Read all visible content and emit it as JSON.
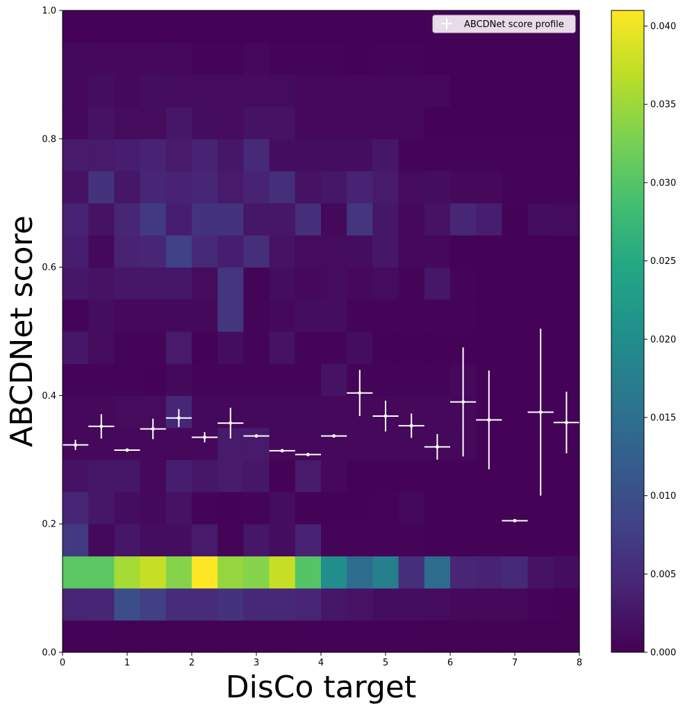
{
  "chart_data": {
    "type": "heatmap",
    "xlabel": "DisCo target",
    "ylabel": "ABCDNet score",
    "xlim": [
      0,
      8
    ],
    "ylim": [
      0,
      1
    ],
    "x_ticks": [
      "0",
      "1",
      "2",
      "3",
      "4",
      "5",
      "6",
      "7",
      "8"
    ],
    "y_ticks": [
      "0.0",
      "0.2",
      "0.4",
      "0.6",
      "0.8",
      "1.0"
    ],
    "colorbar": {
      "colormap": "viridis",
      "range": [
        0,
        0.041
      ],
      "ticks": [
        "0.000",
        "0.005",
        "0.010",
        "0.015",
        "0.020",
        "0.025",
        "0.030",
        "0.035",
        "0.040"
      ]
    },
    "x_bin_edges": [
      0,
      0.4,
      0.8,
      1.2,
      1.6,
      2.0,
      2.4,
      2.8,
      3.2,
      3.6,
      4.0,
      4.4,
      4.8,
      5.2,
      5.6,
      6.0,
      6.4,
      6.8,
      7.2,
      7.6,
      8.0
    ],
    "y_bin_edges": [
      0,
      0.05,
      0.1,
      0.15,
      0.2,
      0.25,
      0.3,
      0.35,
      0.4,
      0.45,
      0.5,
      0.55,
      0.6,
      0.65,
      0.7,
      0.75,
      0.8,
      0.85,
      0.9,
      0.95,
      1.0
    ],
    "heatmap_values": [
      [
        0.0002,
        0.0002,
        0.0001,
        0.0001,
        0.0001,
        0.0001,
        0.0001,
        0.0001,
        0.0001,
        0.0002,
        0.0002,
        0.0002,
        0.0002,
        0.0002,
        0.0001,
        0.0001,
        0.0001,
        0.0001,
        0.0001,
        0.0001
      ],
      [
        0.0042,
        0.0045,
        0.0098,
        0.0078,
        0.0052,
        0.0052,
        0.006,
        0.0048,
        0.0048,
        0.0042,
        0.0025,
        0.0022,
        0.0015,
        0.0015,
        0.0012,
        0.0008,
        0.0008,
        0.0008,
        0.0005,
        0.0003
      ],
      [
        0.0305,
        0.0305,
        0.0355,
        0.0375,
        0.0335,
        0.041,
        0.0345,
        0.0335,
        0.0375,
        0.03,
        0.02,
        0.0145,
        0.0175,
        0.0055,
        0.0145,
        0.0045,
        0.004,
        0.005,
        0.002,
        0.0015
      ],
      [
        0.007,
        0.001,
        0.0025,
        0.0015,
        0.0015,
        0.003,
        0.0005,
        0.0025,
        0.0015,
        0.004,
        0.0005,
        0.0005,
        0.0005,
        0.0005,
        0.0003,
        0.0003,
        0.0003,
        0.0003,
        0.0003,
        0.0003
      ],
      [
        0.0045,
        0.0025,
        0.0015,
        0.001,
        0.002,
        0.0005,
        0.0003,
        0.0005,
        0.0015,
        0.0002,
        0.0003,
        0.0003,
        0.0005,
        0.001,
        0.0003,
        0.0003,
        0.0003,
        0.0003,
        0.0003,
        0.0003
      ],
      [
        0.002,
        0.0025,
        0.0025,
        0.0008,
        0.0035,
        0.0025,
        0.003,
        0.0025,
        0.0002,
        0.003,
        0.0008,
        0.0003,
        0.0003,
        0.0003,
        0.0003,
        0.0003,
        0.0003,
        0.0003,
        0.0003,
        0.0003
      ],
      [
        0.0008,
        0.0008,
        0.0008,
        0.0008,
        0.0008,
        0.0008,
        0.003,
        0.003,
        0.0008,
        0.0008,
        0.0008,
        0.0008,
        0.0008,
        0.0008,
        0.0008,
        0.0008,
        0.0003,
        0.0003,
        0.0003,
        0.0003
      ],
      [
        0.0008,
        0.0008,
        0.0012,
        0.0012,
        0.0045,
        0.001,
        0.001,
        0.001,
        0.001,
        0.001,
        0.0008,
        0.0008,
        0.0008,
        0.0008,
        0.0008,
        0.0008,
        0.0003,
        0.0003,
        0.0003,
        0.0003
      ],
      [
        0.0005,
        0.0005,
        0.0005,
        0.0003,
        0.001,
        0.0005,
        0.0005,
        0.0005,
        0.0005,
        0.0005,
        0.002,
        0.0005,
        0.0005,
        0.0005,
        0.0005,
        0.0008,
        0.0003,
        0.0003,
        0.0003,
        0.0003
      ],
      [
        0.0025,
        0.0012,
        0.0005,
        0.0005,
        0.003,
        0.0003,
        0.0015,
        0.0005,
        0.002,
        0.0005,
        0.0005,
        0.0015,
        0.0003,
        0.0003,
        0.0003,
        0.0003,
        0.0003,
        0.0003,
        0.0003,
        0.0003
      ],
      [
        0.0005,
        0.0015,
        0.0008,
        0.0008,
        0.001,
        0.001,
        0.0065,
        0.0005,
        0.001,
        0.0015,
        0.0015,
        0.0005,
        0.0005,
        0.0005,
        0.0005,
        0.0005,
        0.0003,
        0.0003,
        0.0003,
        0.0003
      ],
      [
        0.0025,
        0.002,
        0.0025,
        0.0025,
        0.0025,
        0.0012,
        0.0065,
        0.0005,
        0.0015,
        0.0008,
        0.0012,
        0.0008,
        0.0012,
        0.0005,
        0.0025,
        0.0005,
        0.0003,
        0.0003,
        0.0003,
        0.0003
      ],
      [
        0.0035,
        0.001,
        0.004,
        0.0045,
        0.008,
        0.005,
        0.0035,
        0.0055,
        0.002,
        0.0012,
        0.0012,
        0.0015,
        0.0025,
        0.0008,
        0.0008,
        0.0003,
        0.0003,
        0.0003,
        0.0003,
        0.0003
      ],
      [
        0.004,
        0.002,
        0.0045,
        0.007,
        0.0035,
        0.006,
        0.006,
        0.0025,
        0.0025,
        0.0055,
        0.001,
        0.0065,
        0.0025,
        0.0008,
        0.002,
        0.0045,
        0.0035,
        0.0002,
        0.0015,
        0.0012
      ],
      [
        0.002,
        0.006,
        0.0025,
        0.0045,
        0.004,
        0.0045,
        0.003,
        0.004,
        0.0055,
        0.002,
        0.0025,
        0.004,
        0.003,
        0.0012,
        0.0015,
        0.0008,
        0.0008,
        0.0005,
        0.0005,
        0.0005
      ],
      [
        0.003,
        0.003,
        0.0035,
        0.004,
        0.003,
        0.004,
        0.0025,
        0.005,
        0.0015,
        0.0015,
        0.0015,
        0.0015,
        0.0025,
        0.0005,
        0.0005,
        0.0005,
        0.0005,
        0.0005,
        0.0005,
        0.0005
      ],
      [
        0.001,
        0.002,
        0.0012,
        0.0012,
        0.0025,
        0.0015,
        0.0012,
        0.002,
        0.002,
        0.0008,
        0.0008,
        0.0008,
        0.0008,
        0.0008,
        0.0003,
        0.0003,
        0.0003,
        0.0003,
        0.0003,
        0.0003
      ],
      [
        0.001,
        0.0015,
        0.001,
        0.0015,
        0.0012,
        0.0012,
        0.0012,
        0.0012,
        0.0012,
        0.0008,
        0.0008,
        0.0008,
        0.0008,
        0.0008,
        0.0008,
        0.0003,
        0.0003,
        0.0003,
        0.0003,
        0.0003
      ],
      [
        0.001,
        0.0008,
        0.0008,
        0.0008,
        0.0008,
        0.0005,
        0.0005,
        0.0008,
        0.0005,
        0.0005,
        0.0005,
        0.0003,
        0.0005,
        0.0005,
        0.0003,
        0.0003,
        0.0003,
        0.0003,
        0.0003,
        0.0003
      ],
      [
        0.0003,
        0.0003,
        0.0003,
        0.0003,
        0.0003,
        0.0002,
        0.0003,
        0.0003,
        0.0003,
        0.0003,
        0.0003,
        0.0003,
        0.0003,
        0.0003,
        0.0003,
        0.0003,
        0.0003,
        0.0003,
        0.0003,
        0.0003
      ]
    ],
    "profile": {
      "name": "ABCDNet score profile",
      "color": "#ffffff",
      "x": [
        0.2,
        0.6,
        1.0,
        1.4,
        1.8,
        2.2,
        2.6,
        3.0,
        3.4,
        3.8,
        4.2,
        4.6,
        5.0,
        5.4,
        5.8,
        6.2,
        6.6,
        7.0,
        7.4,
        7.8
      ],
      "y": [
        0.323,
        0.352,
        0.315,
        0.348,
        0.365,
        0.335,
        0.357,
        0.337,
        0.314,
        0.308,
        0.337,
        0.404,
        0.368,
        0.353,
        0.32,
        0.39,
        0.362,
        0.205,
        0.374,
        0.358
      ],
      "yerr": [
        0.008,
        0.019,
        0.002,
        0.016,
        0.014,
        0.008,
        0.024,
        0.002,
        0.002,
        0.002,
        0.002,
        0.036,
        0.024,
        0.019,
        0.02,
        0.085,
        0.077,
        0.001,
        0.13,
        0.048
      ],
      "xerr": 0.2
    },
    "legend": {
      "position": "top-right",
      "label": "ABCDNet score profile"
    }
  }
}
